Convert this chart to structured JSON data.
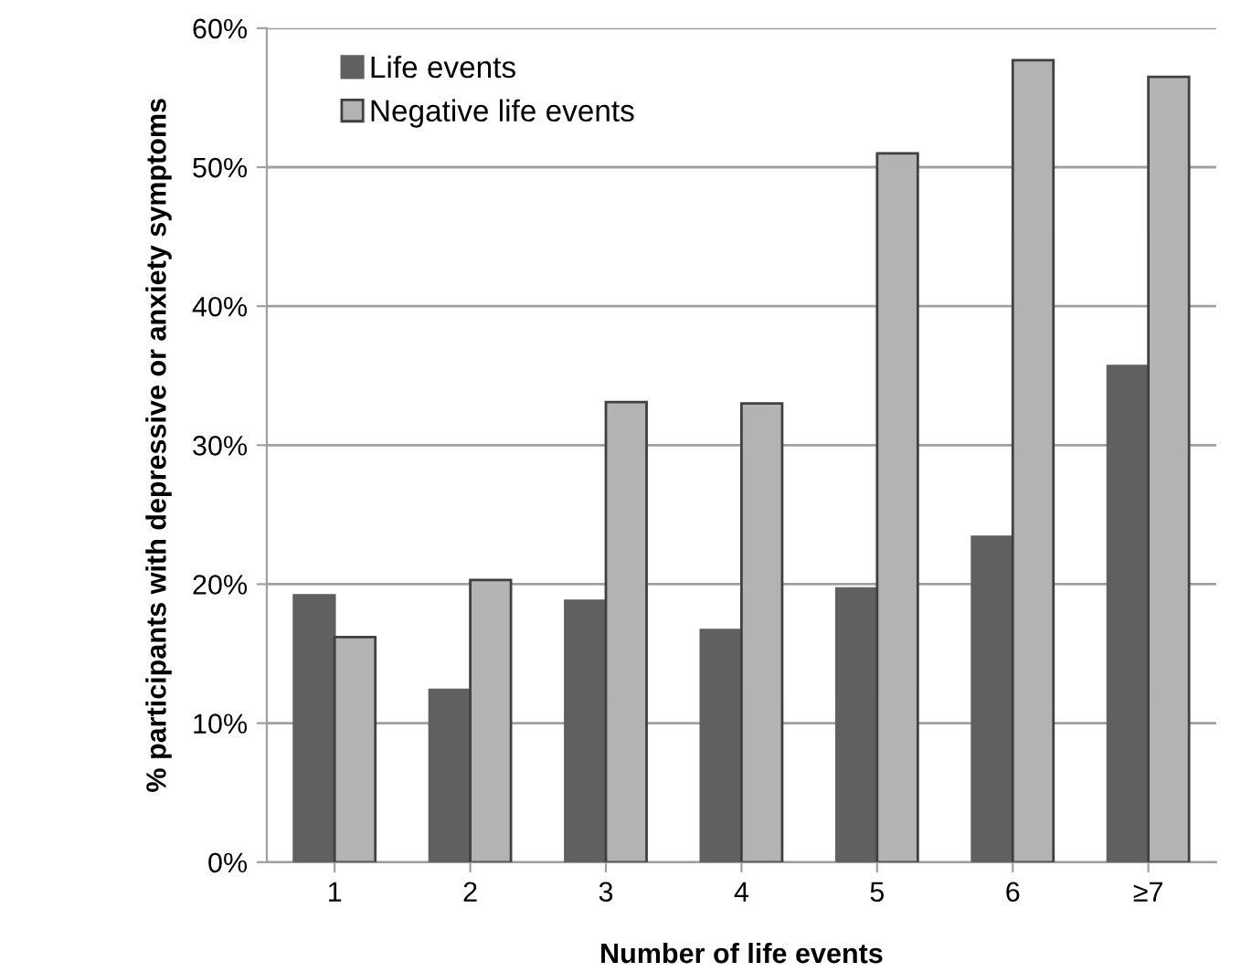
{
  "chart_data": {
    "type": "bar",
    "xlabel": "Number of life events",
    "ylabel": "% participants with depressive or anxiety symptoms",
    "categories": [
      "1",
      "2",
      "3",
      "4",
      "5",
      "6",
      "≥7"
    ],
    "series": [
      {
        "name": "Life events",
        "color": "#606060",
        "values": [
          19.2,
          12.4,
          18.8,
          16.7,
          19.7,
          23.4,
          35.7
        ]
      },
      {
        "name": "Negative life events",
        "color": "#b3b3b3",
        "values": [
          16.2,
          20.3,
          33.1,
          33.0,
          51.0,
          57.7,
          56.5
        ]
      }
    ],
    "ylim": [
      0,
      60
    ],
    "yticks": [
      {
        "value": 0,
        "label": "0%"
      },
      {
        "value": 10,
        "label": "10%"
      },
      {
        "value": 20,
        "label": "20%"
      },
      {
        "value": 30,
        "label": "30%"
      },
      {
        "value": 40,
        "label": "40%"
      },
      {
        "value": 50,
        "label": "50%"
      },
      {
        "value": 60,
        "label": "60%"
      }
    ],
    "grid": "y",
    "legend": "top left"
  }
}
